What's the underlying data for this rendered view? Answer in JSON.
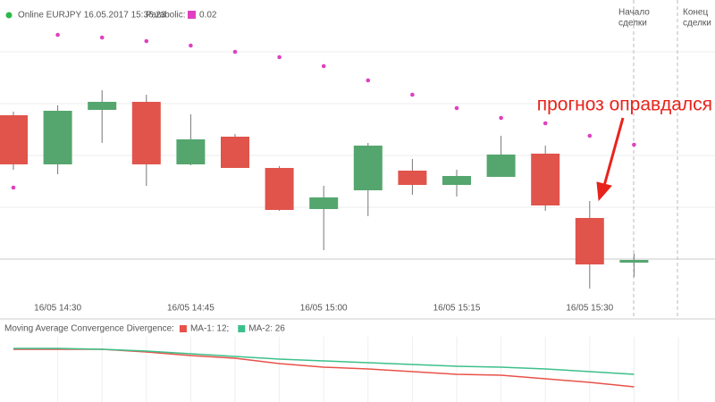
{
  "header": {
    "status": "Online EURJPY 16.05.2017 15:36:23",
    "indicator": "Parabolic:",
    "indicator_value": "0.02"
  },
  "chart_data": [
    {
      "type": "candlestick",
      "categories": [
        null,
        "16/05 14:30",
        null,
        null,
        "16/05 14:45",
        null,
        null,
        "16/05 15:00",
        null,
        null,
        "16/05 15:15",
        null,
        null,
        "16/05 15:30",
        null
      ],
      "open": [
        216,
        161,
        222,
        231,
        161,
        192,
        157,
        111,
        132,
        154,
        138,
        147,
        173,
        101,
        51
      ],
      "high": [
        220,
        227,
        244,
        239,
        217,
        195,
        159,
        137,
        185,
        167,
        155,
        193,
        182,
        120,
        61
      ],
      "low": [
        155,
        150,
        185,
        137,
        160,
        157,
        109,
        65,
        103,
        127,
        125,
        147,
        109,
        22,
        35
      ],
      "close": [
        161,
        221,
        231,
        161,
        189,
        157,
        110,
        124,
        182,
        138,
        148,
        172,
        115,
        49,
        54
      ],
      "up_color": "#55a66e",
      "down_color": "#e0544b",
      "parabolic": {
        "color": "#e040c0",
        "values": [
          135,
          306,
          303,
          299,
          294,
          287,
          281,
          271,
          255,
          239,
          224,
          213,
          207,
          193,
          183
        ]
      },
      "ylim": [
        0,
        345
      ],
      "markers": [
        {
          "lines": [
            "Начало",
            "сделки"
          ]
        },
        {
          "lines": [
            "Конец",
            "сделки"
          ]
        }
      ],
      "annotation": "прогноз оправдался"
    },
    {
      "type": "line",
      "title": "Moving Average Convergence Divergence:",
      "series": [
        {
          "name": "MA-1: 12;",
          "color": "#e8524a",
          "values": [
            59,
            59,
            59,
            56,
            52,
            49,
            43,
            39,
            37,
            34,
            31,
            30,
            26,
            22,
            17
          ]
        },
        {
          "name": "MA-2: 26",
          "color": "#3cc08a",
          "values": [
            60,
            60,
            59,
            57,
            54,
            51,
            48,
            46,
            44,
            42,
            40,
            39,
            37,
            34,
            31
          ]
        }
      ],
      "ylim": [
        0,
        75
      ]
    }
  ]
}
